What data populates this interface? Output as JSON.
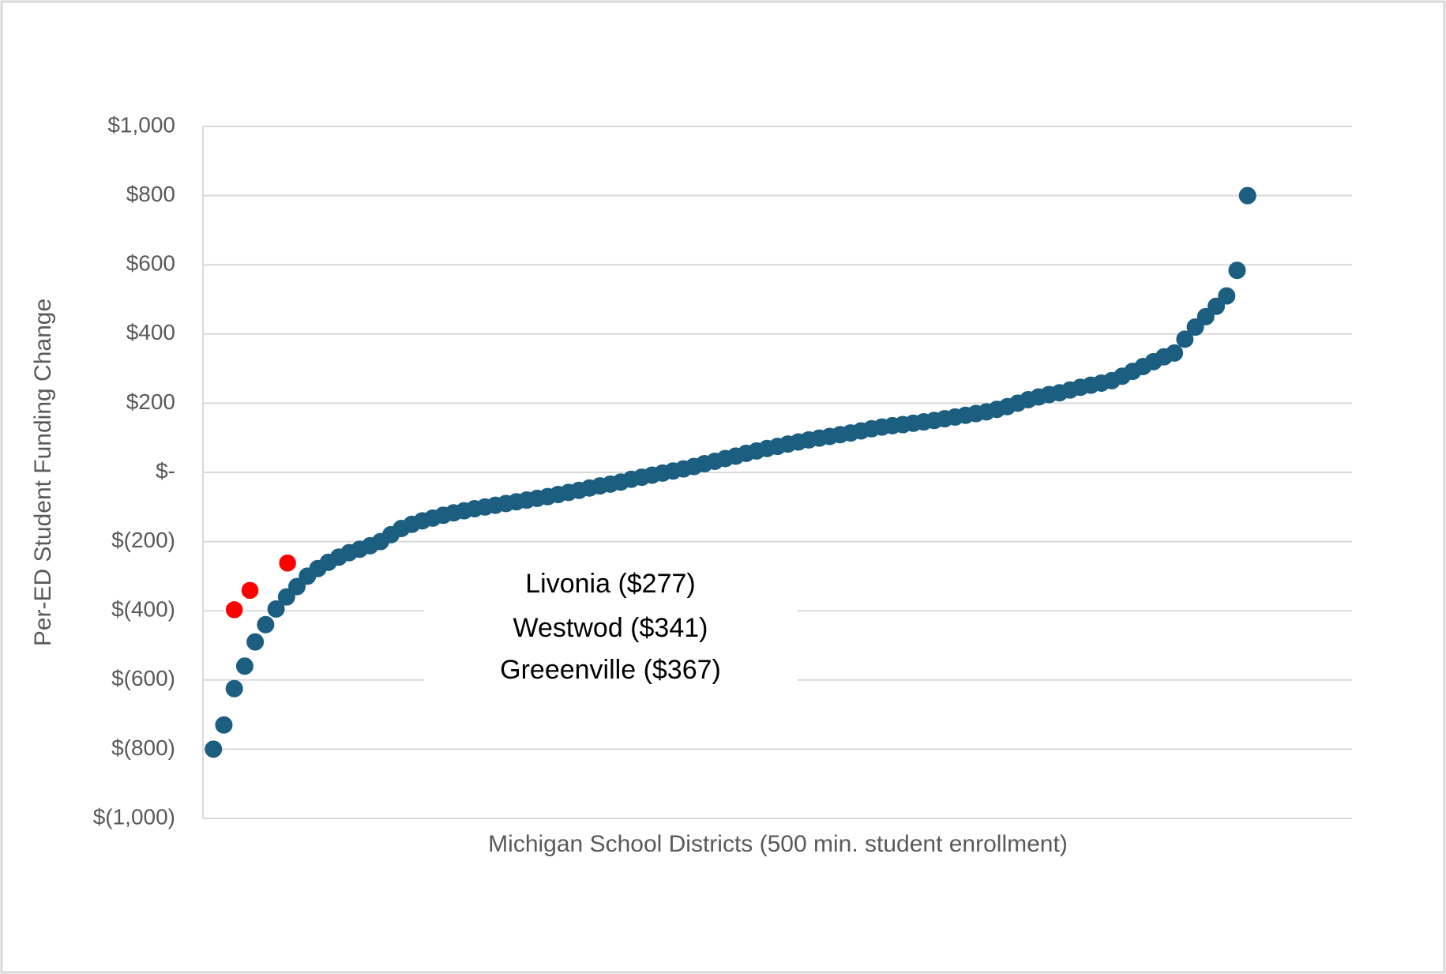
{
  "chart_data": {
    "type": "scatter",
    "y_axis_label": "Per-ED Student Funding Change",
    "x_axis_label": "Michigan School Districts (500 min. student enrollment)",
    "annotations": [
      "Livonia ($277)",
      "Westwod ($341)",
      "Greeenville ($367)"
    ],
    "xlim": [
      0,
      110
    ],
    "ylim": [
      -1000,
      1000
    ],
    "yticks": [
      {
        "value": 1000,
        "label": "$1,000"
      },
      {
        "value": 800,
        "label": "$800"
      },
      {
        "value": 600,
        "label": "$600"
      },
      {
        "value": 400,
        "label": "$400"
      },
      {
        "value": 200,
        "label": "$200"
      },
      {
        "value": 0,
        "label": "$-"
      },
      {
        "value": -200,
        "label": "$(200)"
      },
      {
        "value": -400,
        "label": "$(400)"
      },
      {
        "value": -600,
        "label": "$(600)"
      },
      {
        "value": -800,
        "label": "$(800)"
      },
      {
        "value": -1000,
        "label": "$(1,000)"
      }
    ],
    "grid": true,
    "series": [
      {
        "color": "#1b5e80",
        "x": [
          1,
          2,
          3,
          4,
          5,
          6,
          7,
          8,
          9,
          10,
          11,
          12,
          13,
          14,
          15,
          16,
          17,
          18,
          19,
          20,
          21,
          22,
          23,
          24,
          25,
          26,
          27,
          28,
          29,
          30,
          31,
          32,
          33,
          34,
          35,
          36,
          37,
          38,
          39,
          40,
          41,
          42,
          43,
          44,
          45,
          46,
          47,
          48,
          49,
          50,
          51,
          52,
          53,
          54,
          55,
          56,
          57,
          58,
          59,
          60,
          61,
          62,
          63,
          64,
          65,
          66,
          67,
          68,
          69,
          70,
          71,
          72,
          73,
          74,
          75,
          76,
          77,
          78,
          79,
          80,
          81,
          82,
          83,
          84,
          85,
          86,
          87,
          88,
          89,
          90,
          91,
          92,
          93,
          94,
          95,
          96,
          97,
          98,
          99,
          100
        ],
        "values": [
          -800,
          -730,
          -625,
          -560,
          -490,
          -440,
          -395,
          -360,
          -330,
          -300,
          -278,
          -260,
          -245,
          -232,
          -222,
          -212,
          -200,
          -180,
          -162,
          -150,
          -140,
          -132,
          -124,
          -117,
          -111,
          -105,
          -100,
          -95,
          -90,
          -85,
          -80,
          -75,
          -70,
          -64,
          -58,
          -52,
          -45,
          -39,
          -34,
          -28,
          -20,
          -14,
          -8,
          -2,
          4,
          10,
          17,
          25,
          32,
          40,
          47,
          55,
          62,
          69,
          75,
          82,
          88,
          94,
          99,
          104,
          109,
          114,
          120,
          126,
          131,
          135,
          138,
          142,
          146,
          150,
          155,
          160,
          165,
          170,
          175,
          182,
          190,
          200,
          210,
          218,
          225,
          230,
          238,
          246,
          252,
          258,
          265,
          278,
          292,
          306,
          320,
          334,
          345,
          385,
          420,
          450,
          480,
          510,
          584,
          800
        ]
      },
      {
        "color": "#ff0000",
        "x": [
          3,
          4.5,
          8.1
        ],
        "values": [
          -397,
          -341,
          -262
        ]
      }
    ]
  }
}
